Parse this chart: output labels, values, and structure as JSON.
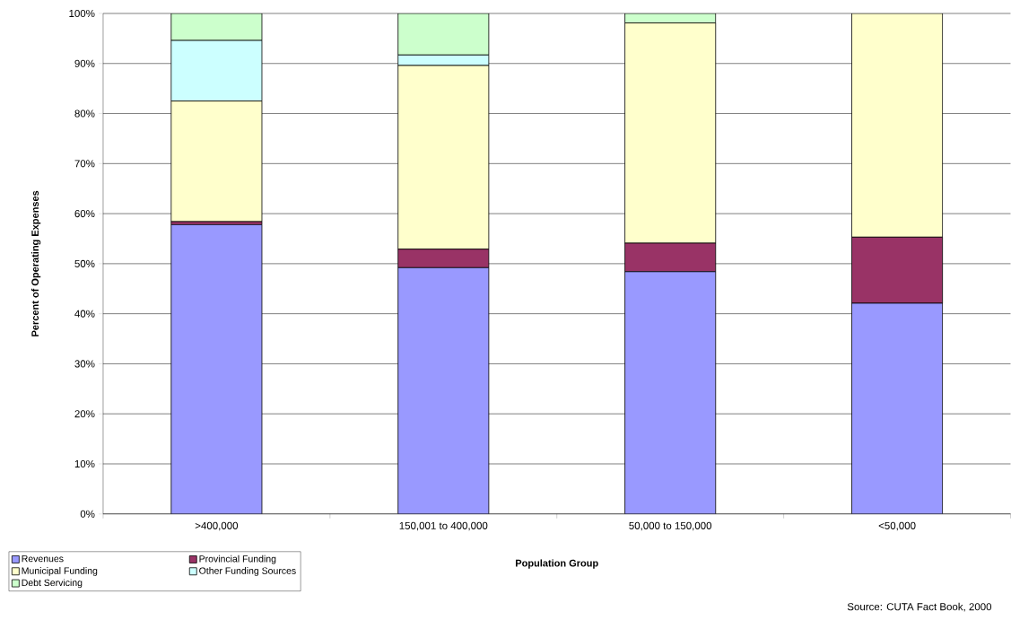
{
  "chart_data": {
    "type": "bar",
    "stacked": true,
    "xlabel": "Population Group",
    "ylabel": "Percent of Operating Expenses",
    "categories": [
      ">400,000",
      "150,001 to 400,000",
      "50,000 to 150,000",
      "<50,000"
    ],
    "series": [
      {
        "name": "Revenues",
        "color": "#9999ff",
        "values": [
          57.8,
          49.2,
          48.4,
          42.1
        ]
      },
      {
        "name": "Provincial Funding",
        "color": "#993366",
        "values": [
          0.6,
          3.7,
          5.7,
          13.2
        ]
      },
      {
        "name": "Municipal Funding",
        "color": "#ffffcc",
        "values": [
          24.1,
          36.7,
          44.0,
          44.7
        ]
      },
      {
        "name": "Other Funding Sources",
        "color": "#ccffff",
        "values": [
          12.1,
          2.1,
          0,
          0
        ]
      },
      {
        "name": "Debt Servicing",
        "color": "#ccffcc",
        "values": [
          5.4,
          8.3,
          1.9,
          0
        ]
      }
    ],
    "ylim": [
      0,
      100
    ],
    "yticks": [
      {
        "value": 0,
        "label": "0%"
      },
      {
        "value": 10,
        "label": "10%"
      },
      {
        "value": 20,
        "label": "20%"
      },
      {
        "value": 30,
        "label": "30%"
      },
      {
        "value": 40,
        "label": "40%"
      },
      {
        "value": 50,
        "label": "50%"
      },
      {
        "value": 60,
        "label": "60%"
      },
      {
        "value": 70,
        "label": "70%"
      },
      {
        "value": 80,
        "label": "80%"
      },
      {
        "value": 90,
        "label": "90%"
      },
      {
        "value": 100,
        "label": "100%"
      }
    ],
    "grid": "y",
    "legend": "bottom left",
    "annotations": [
      "Source: CUTA Fact Book, 2000"
    ]
  }
}
